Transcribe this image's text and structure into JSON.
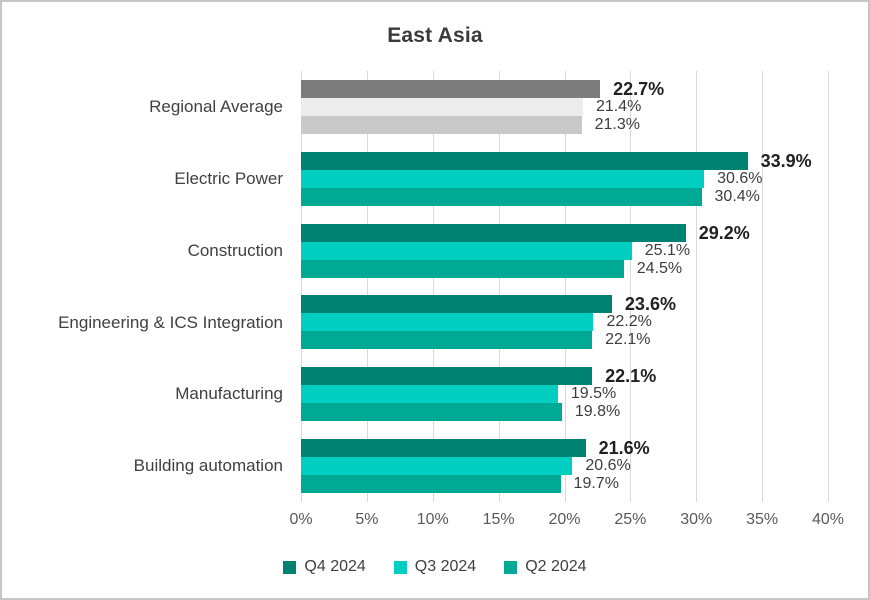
{
  "chart_data": {
    "type": "bar",
    "orientation": "horizontal",
    "title": "East Asia",
    "categories": [
      "Regional Average",
      "Electric Power",
      "Construction",
      "Engineering & ICS Integration",
      "Manufacturing",
      "Building automation"
    ],
    "series": [
      {
        "name": "Q4 2024",
        "color": "#008273",
        "regional_average_color": "#7c7c7c",
        "emphasized_labels": true,
        "values": [
          22.7,
          33.9,
          29.2,
          23.6,
          22.1,
          21.6
        ],
        "labels": [
          "22.7%",
          "33.9%",
          "29.2%",
          "23.6%",
          "22.1%",
          "21.6%"
        ]
      },
      {
        "name": "Q3 2024",
        "color": "#00cec0",
        "regional_average_color": "#ececec",
        "emphasized_labels": false,
        "values": [
          21.4,
          30.6,
          25.1,
          22.2,
          19.5,
          20.6
        ],
        "labels": [
          "21.4%",
          "30.6%",
          "25.1%",
          "22.2%",
          "19.5%",
          "20.6%"
        ]
      },
      {
        "name": "Q2 2024",
        "color": "#00a993",
        "regional_average_color": "#c9c9c9",
        "emphasized_labels": false,
        "values": [
          21.3,
          30.4,
          24.5,
          22.1,
          19.8,
          19.7
        ],
        "labels": [
          "21.3%",
          "30.4%",
          "24.5%",
          "22.1%",
          "19.8%",
          "19.7%"
        ]
      }
    ],
    "xlim": [
      0,
      40
    ],
    "x_tick_labels": [
      "0%",
      "5%",
      "10%",
      "15%",
      "20%",
      "25%",
      "30%",
      "35%",
      "40%"
    ],
    "grid": true,
    "legend_position": "bottom",
    "colors": {
      "gridline": "#d9d9d9",
      "title_text": "#3a3a3a",
      "category_text": "#404040",
      "axis_text": "#595959",
      "legend_text": "#404040",
      "value_text": "#3d3d3d",
      "value_text_bold": "#212121",
      "canvas_border": "#c6c6c6",
      "background": "#ffffff"
    }
  }
}
